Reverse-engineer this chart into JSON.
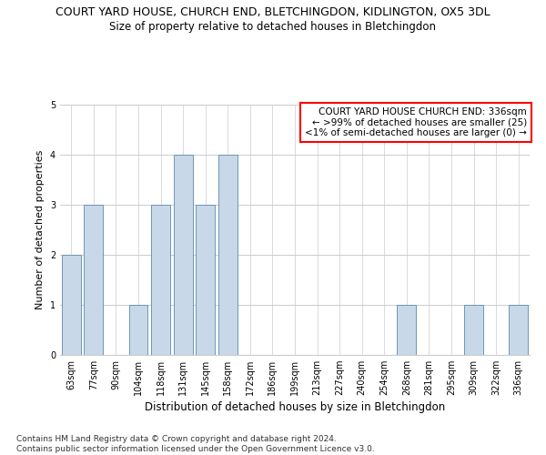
{
  "title": "COURT YARD HOUSE, CHURCH END, BLETCHINGDON, KIDLINGTON, OX5 3DL",
  "subtitle": "Size of property relative to detached houses in Bletchingdon",
  "xlabel": "Distribution of detached houses by size in Bletchingdon",
  "ylabel": "Number of detached properties",
  "categories": [
    "63sqm",
    "77sqm",
    "90sqm",
    "104sqm",
    "118sqm",
    "131sqm",
    "145sqm",
    "158sqm",
    "172sqm",
    "186sqm",
    "199sqm",
    "213sqm",
    "227sqm",
    "240sqm",
    "254sqm",
    "268sqm",
    "281sqm",
    "295sqm",
    "309sqm",
    "322sqm",
    "336sqm"
  ],
  "values": [
    2,
    3,
    0,
    1,
    3,
    4,
    3,
    4,
    0,
    0,
    0,
    0,
    0,
    0,
    0,
    1,
    0,
    0,
    1,
    0,
    1
  ],
  "bar_color": "#c8d8e8",
  "bar_edge_color": "#5a8ab0",
  "ylim": [
    0,
    5
  ],
  "yticks": [
    0,
    1,
    2,
    3,
    4,
    5
  ],
  "annotation_box_text": "COURT YARD HOUSE CHURCH END: 336sqm\n← >99% of detached houses are smaller (25)\n<1% of semi-detached houses are larger (0) →",
  "annotation_box_color": "white",
  "annotation_box_edge_color": "red",
  "footer_text": "Contains HM Land Registry data © Crown copyright and database right 2024.\nContains public sector information licensed under the Open Government Licence v3.0.",
  "grid_color": "#cccccc",
  "background_color": "white",
  "title_fontsize": 9,
  "subtitle_fontsize": 8.5,
  "xlabel_fontsize": 8.5,
  "ylabel_fontsize": 8,
  "tick_fontsize": 7,
  "footer_fontsize": 6.5,
  "annotation_fontsize": 7.5
}
